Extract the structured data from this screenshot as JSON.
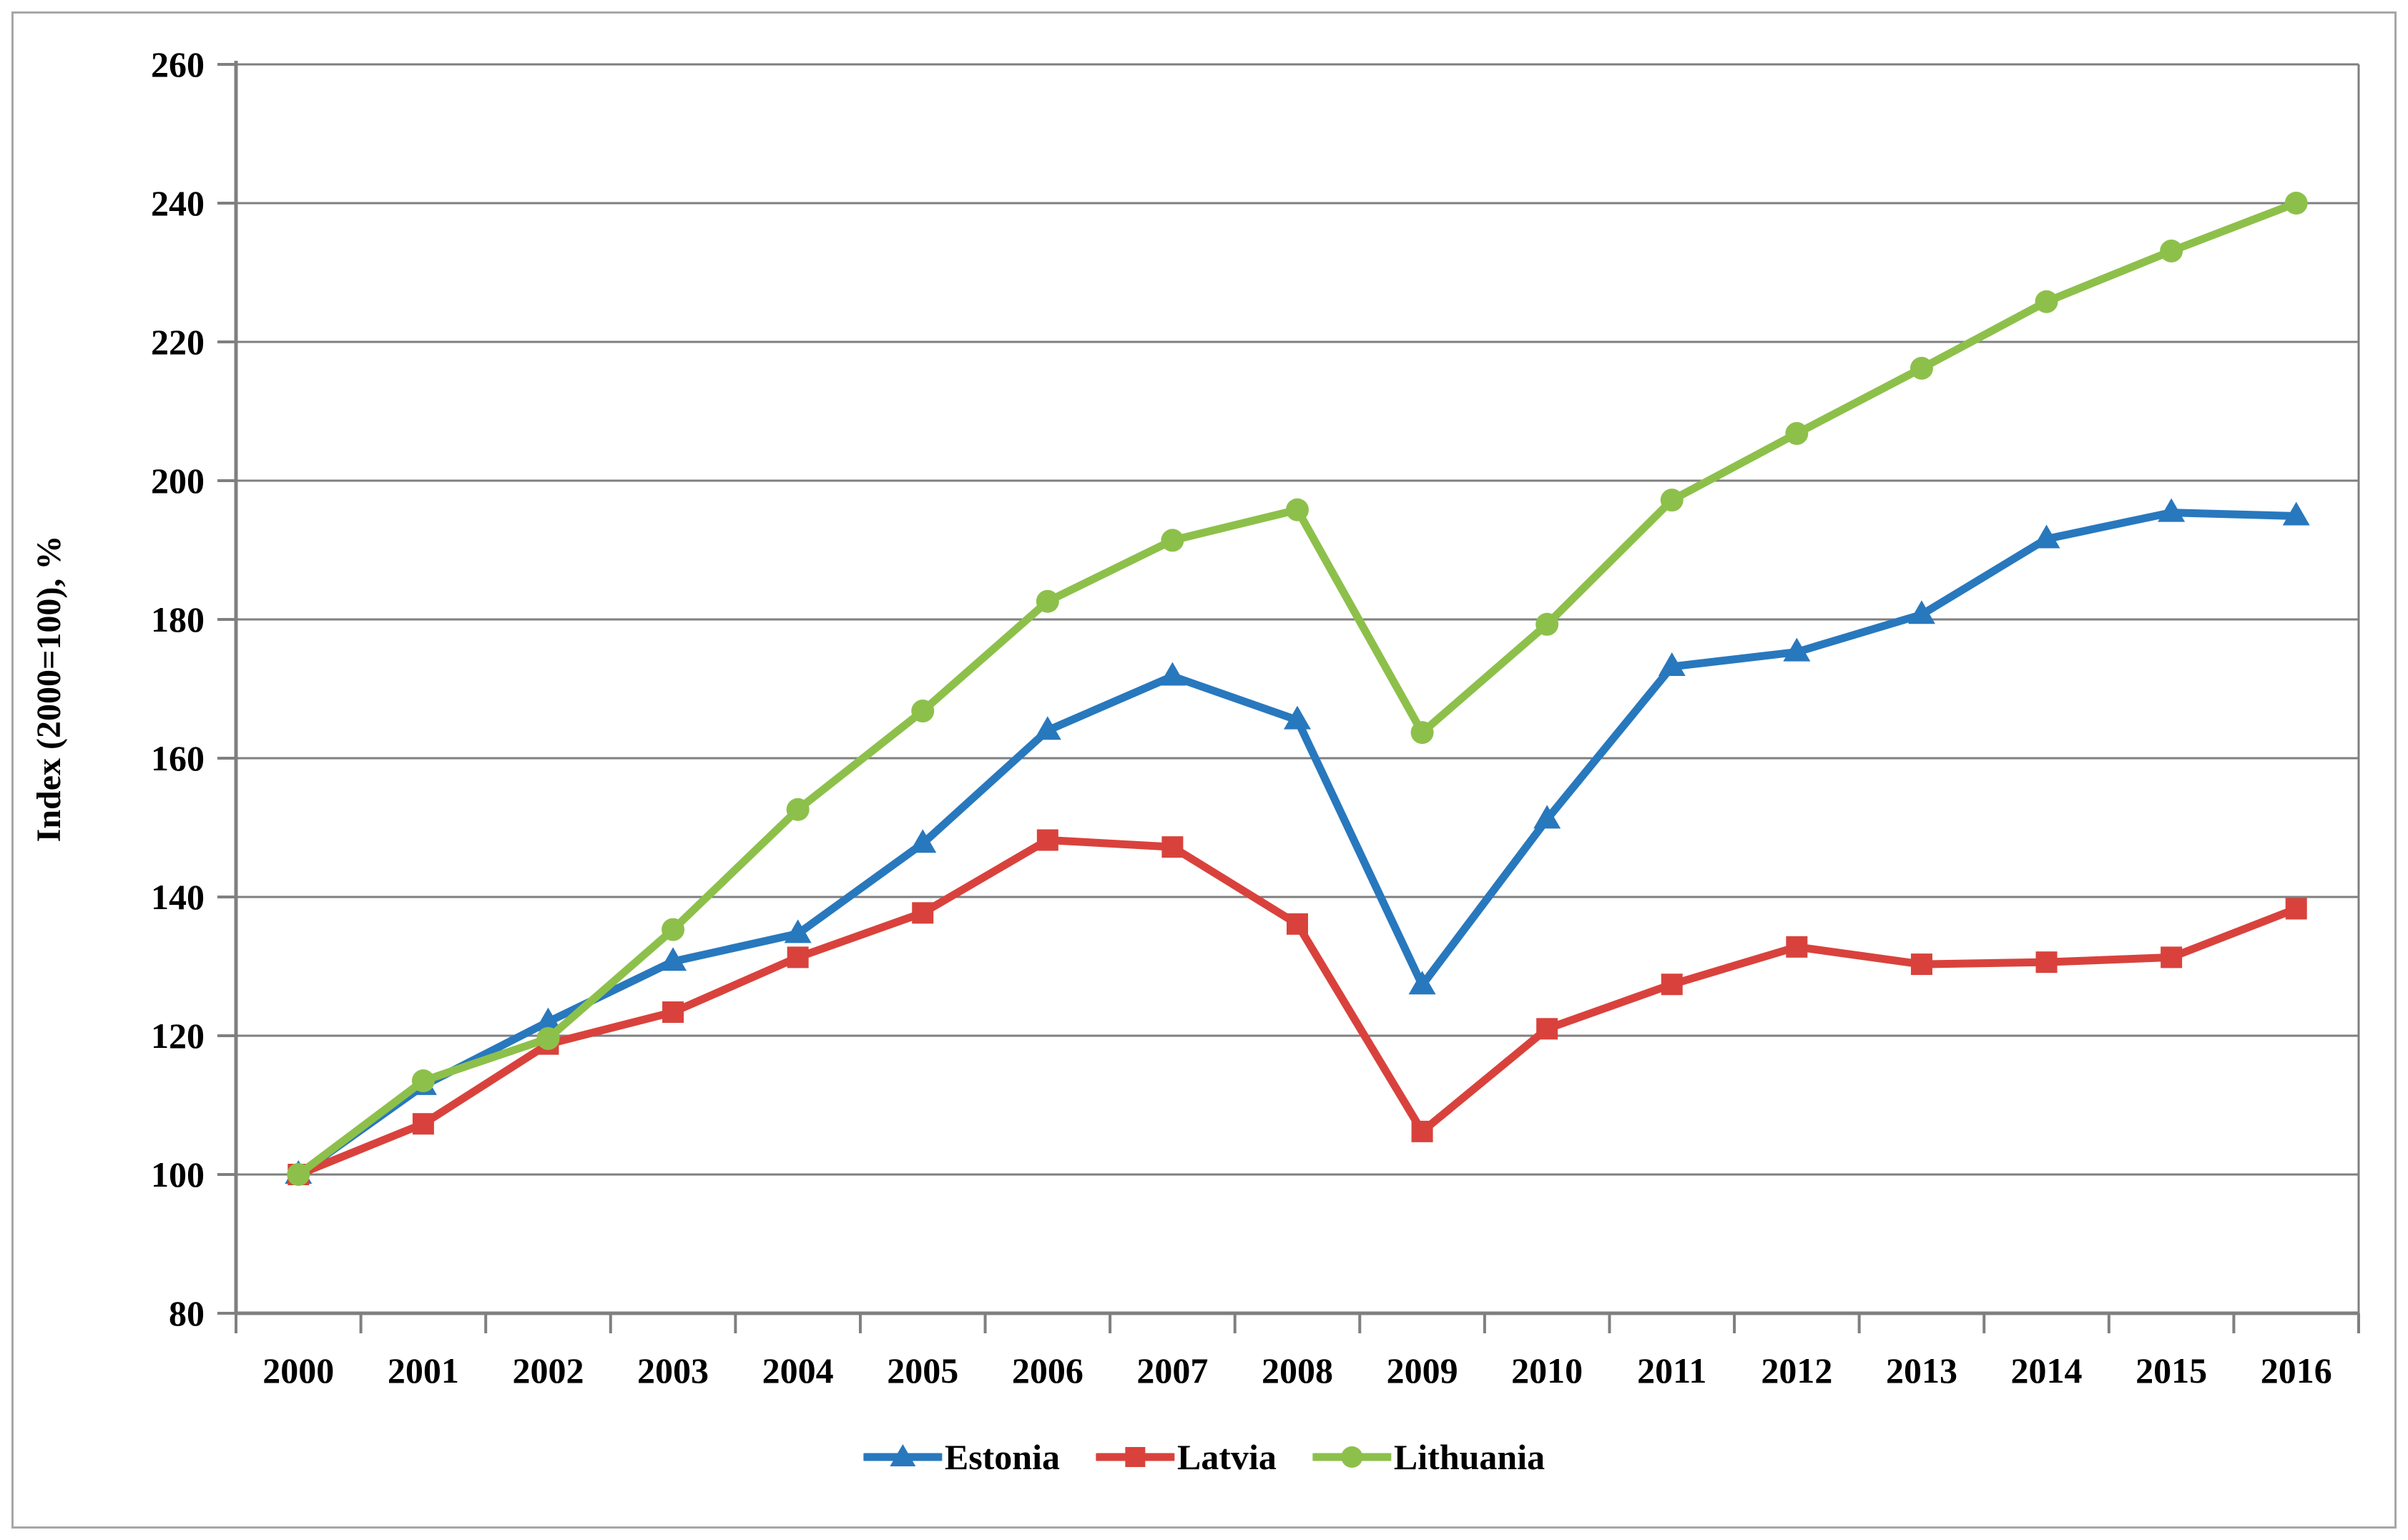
{
  "figure": {
    "background": "#FFFFFF",
    "border_color": "#A7A7A7",
    "gridline_color": "#7F7F7F",
    "axis_color": "#7F7F7F",
    "text_color": "#000000"
  },
  "chart_data": {
    "type": "line",
    "title": "",
    "xlabel": "",
    "ylabel": "Index (2000=100), %",
    "ylim": [
      80,
      260
    ],
    "ytick_step": 20,
    "grid": true,
    "legend_position": "bottom",
    "categories": [
      "2000",
      "2001",
      "2002",
      "2003",
      "2004",
      "2005",
      "2006",
      "2007",
      "2008",
      "2009",
      "2010",
      "2011",
      "2012",
      "2013",
      "2014",
      "2015",
      "2016"
    ],
    "series": [
      {
        "name": "Estonia",
        "color": "#2878BE",
        "marker": "triangle",
        "values": [
          100,
          112.8,
          122,
          130.7,
          134.7,
          147.7,
          164,
          171.8,
          165.5,
          127.3,
          151.2,
          173.2,
          175.3,
          180.7,
          191.6,
          195.4,
          194.9
        ]
      },
      {
        "name": "Latvia",
        "color": "#D9423C",
        "marker": "square",
        "values": [
          100,
          107.3,
          118.8,
          123.4,
          131.3,
          137.7,
          148.2,
          147.2,
          136.1,
          106.2,
          121,
          127.4,
          132.8,
          130.3,
          130.6,
          131.3,
          138.3
        ]
      },
      {
        "name": "Lithuania",
        "color": "#8DC04A",
        "marker": "circle",
        "values": [
          100,
          113.5,
          119.6,
          135.3,
          152.6,
          166.8,
          182.6,
          191.4,
          195.8,
          163.7,
          179.3,
          197.2,
          206.8,
          216.2,
          225.8,
          233.1,
          240
        ]
      }
    ]
  },
  "y_axis": {
    "title": "Index (2000=100), %",
    "tick_labels": [
      "80",
      "100",
      "120",
      "140",
      "160",
      "180",
      "200",
      "220",
      "240",
      "260"
    ]
  },
  "x_axis": {
    "tick_labels": [
      "2000",
      "2001",
      "2002",
      "2003",
      "2004",
      "2005",
      "2006",
      "2007",
      "2008",
      "2009",
      "2010",
      "2011",
      "2012",
      "2013",
      "2014",
      "2015",
      "2016"
    ]
  },
  "legend": {
    "items": [
      {
        "label": "Estonia"
      },
      {
        "label": "Latvia"
      },
      {
        "label": "Lithuania"
      }
    ]
  }
}
